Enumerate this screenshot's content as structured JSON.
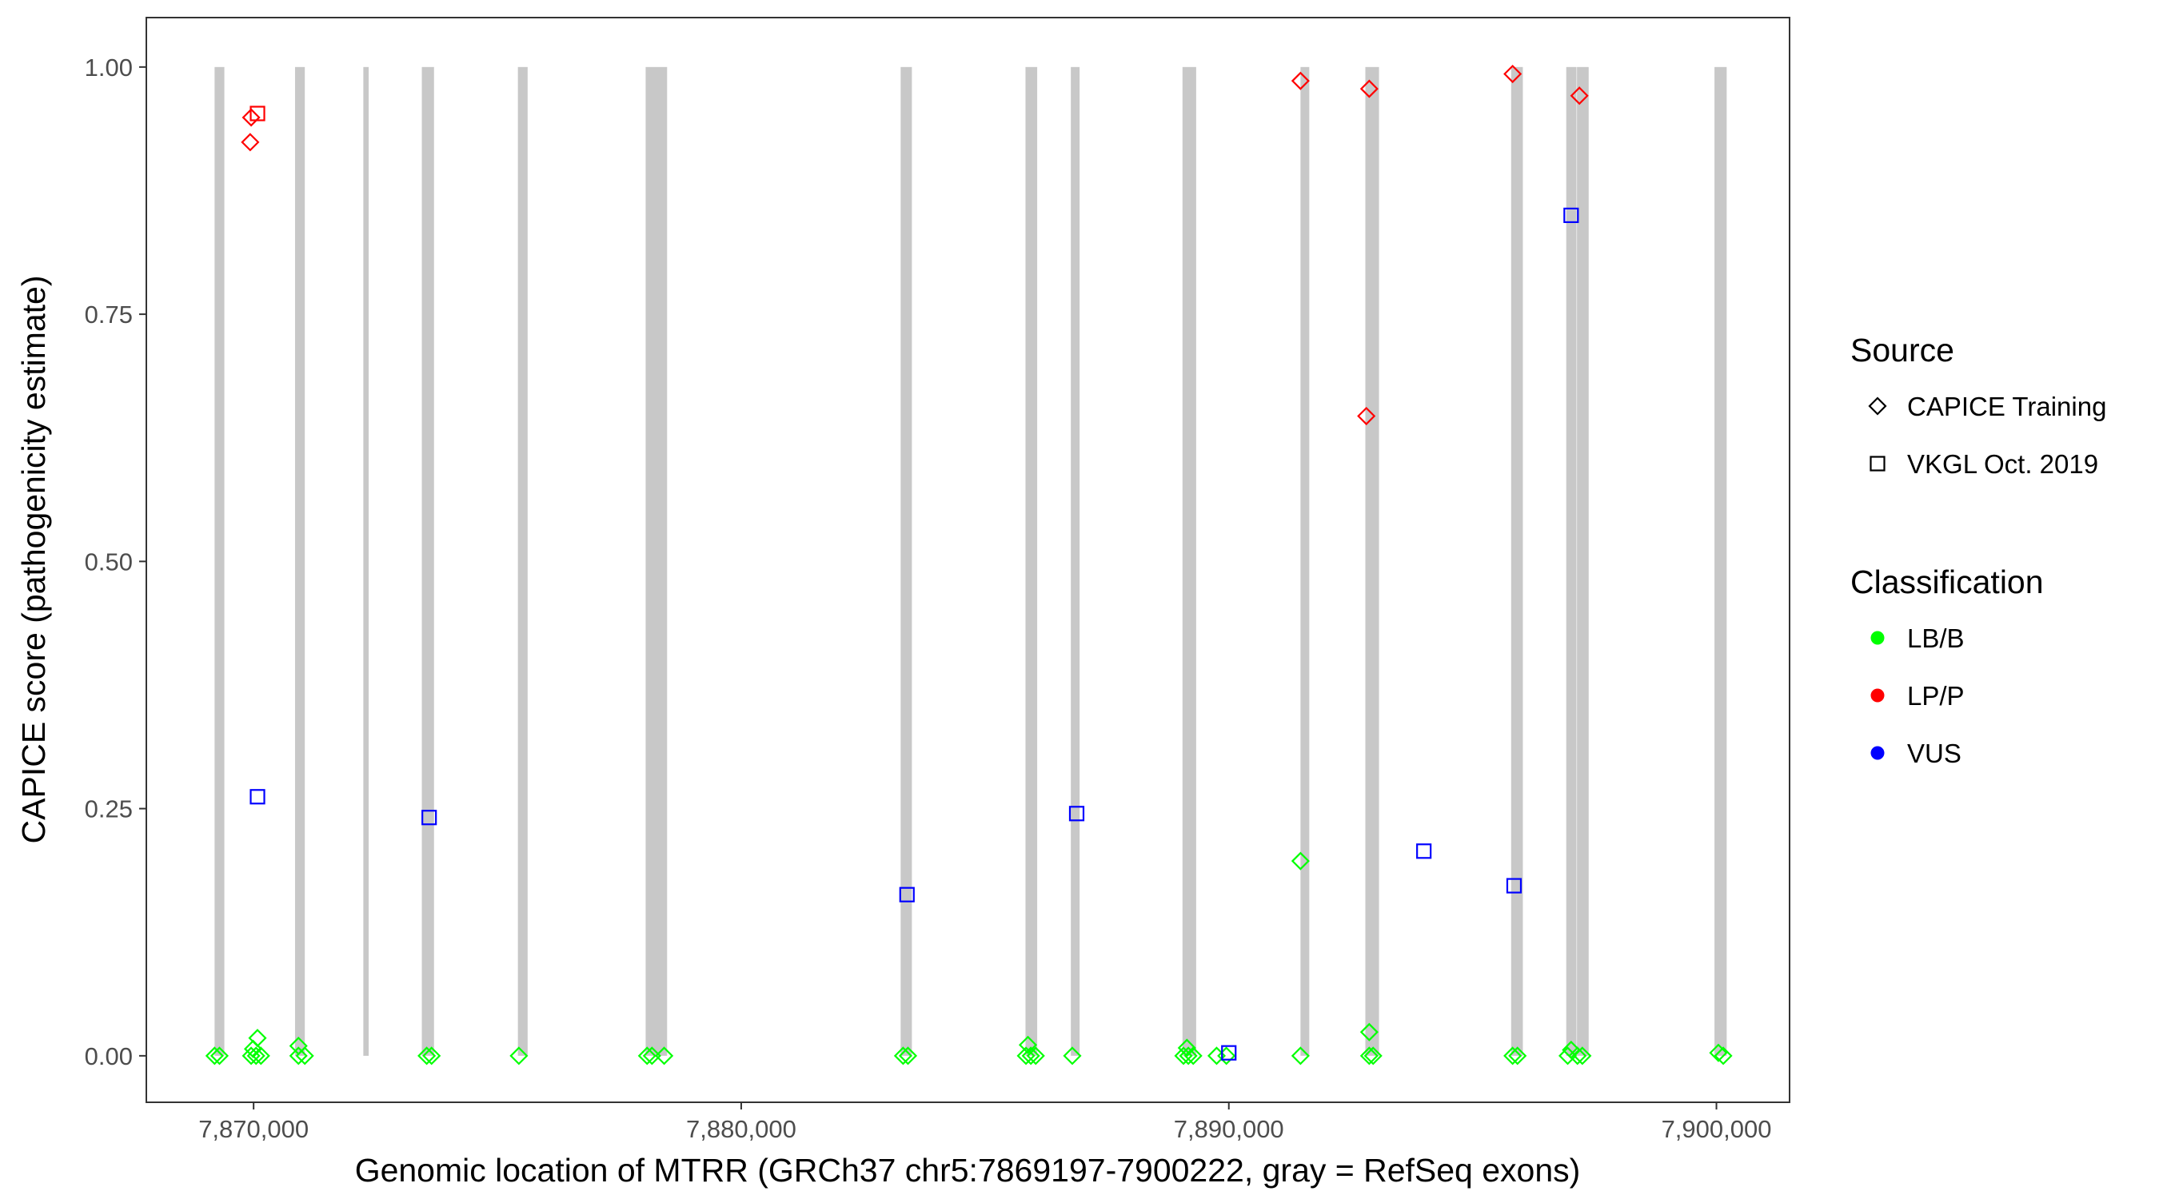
{
  "chart_data": {
    "type": "scatter",
    "xlabel": "Genomic location of MTRR (GRCh37 chr5:7869197-7900222, gray = RefSeq exons)",
    "ylabel": "CAPICE score (pathogenicity estimate)",
    "xlim": [
      7867800,
      7901500
    ],
    "ylim": [
      -0.047,
      1.05
    ],
    "x_ticks": [
      7870000,
      7880000,
      7890000,
      7900000
    ],
    "x_tick_labels": [
      "7,870,000",
      "7,880,000",
      "7,890,000",
      "7,900,000"
    ],
    "y_ticks": [
      0,
      0.25,
      0.5,
      0.75,
      1.0
    ],
    "y_tick_labels": [
      "0.00",
      "0.25",
      "0.50",
      "0.75",
      "1.00"
    ],
    "grid": false,
    "exon_color": "#c8c8c8",
    "exons": [
      [
        7869200,
        7869400
      ],
      [
        7870850,
        7871050
      ],
      [
        7872250,
        7872360
      ],
      [
        7873450,
        7873700
      ],
      [
        7875420,
        7875620
      ],
      [
        7878040,
        7878480
      ],
      [
        7883270,
        7883500
      ],
      [
        7885830,
        7886070
      ],
      [
        7886760,
        7886940
      ],
      [
        7889050,
        7889330
      ],
      [
        7891470,
        7891650
      ],
      [
        7892800,
        7893080
      ],
      [
        7895790,
        7896030
      ],
      [
        7896920,
        7897130
      ],
      [
        7897140,
        7897380
      ],
      [
        7899960,
        7900210
      ]
    ],
    "legend": {
      "source_title": "Source",
      "source_items": [
        {
          "label": "CAPICE Training",
          "shape": "diamond"
        },
        {
          "label": "VKGL Oct. 2019",
          "shape": "square"
        }
      ],
      "class_title": "Classification",
      "class_items": [
        {
          "label": "LB/B",
          "color": "#00ff00"
        },
        {
          "label": "LP/P",
          "color": "#ff0000"
        },
        {
          "label": "VUS",
          "color": "#0000ff"
        }
      ],
      "placement": "right"
    },
    "colors": {
      "LB/B": "#00ff00",
      "LP/P": "#ff0000",
      "VUS": "#0000ff"
    },
    "series": [
      {
        "name": "CAPICE Training",
        "shape": "diamond",
        "points": [
          [
            7869950,
            0.949,
            "LP/P"
          ],
          [
            7869930,
            0.924,
            "LP/P"
          ],
          [
            7891470,
            0.986,
            "LP/P"
          ],
          [
            7892880,
            0.978,
            "LP/P"
          ],
          [
            7895820,
            0.993,
            "LP/P"
          ],
          [
            7897190,
            0.971,
            "LP/P"
          ],
          [
            7892820,
            0.647,
            "LP/P"
          ],
          [
            7891470,
            0.197,
            "LB/B"
          ],
          [
            7892880,
            0.024,
            "LB/B"
          ],
          [
            7870080,
            0.018,
            "LB/B"
          ],
          [
            7869990,
            0.007,
            "LB/B"
          ],
          [
            7870920,
            0.01,
            "LB/B"
          ],
          [
            7885880,
            0.011,
            "LB/B"
          ],
          [
            7889140,
            0.008,
            "LB/B"
          ],
          [
            7897020,
            0.006,
            "LB/B"
          ],
          [
            7869200,
            0.0,
            "LB/B"
          ],
          [
            7869300,
            0.0,
            "LB/B"
          ],
          [
            7869950,
            0.0,
            "LB/B"
          ],
          [
            7870050,
            0.0,
            "LB/B"
          ],
          [
            7870150,
            0.0,
            "LB/B"
          ],
          [
            7870920,
            0.0,
            "LB/B"
          ],
          [
            7871050,
            0.0,
            "LB/B"
          ],
          [
            7873550,
            0.0,
            "LB/B"
          ],
          [
            7873650,
            0.0,
            "LB/B"
          ],
          [
            7875440,
            0.0,
            "LB/B"
          ],
          [
            7878070,
            0.0,
            "LB/B"
          ],
          [
            7878170,
            0.0,
            "LB/B"
          ],
          [
            7878420,
            0.0,
            "LB/B"
          ],
          [
            7883320,
            0.0,
            "LB/B"
          ],
          [
            7883420,
            0.0,
            "LB/B"
          ],
          [
            7885840,
            0.0,
            "LB/B"
          ],
          [
            7885940,
            0.0,
            "LB/B"
          ],
          [
            7886040,
            0.0,
            "LB/B"
          ],
          [
            7886790,
            0.0,
            "LB/B"
          ],
          [
            7889070,
            0.0,
            "LB/B"
          ],
          [
            7889170,
            0.0,
            "LB/B"
          ],
          [
            7889270,
            0.0,
            "LB/B"
          ],
          [
            7889750,
            0.0,
            "LB/B"
          ],
          [
            7889950,
            0.0,
            "LB/B"
          ],
          [
            7891470,
            0.0,
            "LB/B"
          ],
          [
            7892880,
            0.0,
            "LB/B"
          ],
          [
            7892960,
            0.0,
            "LB/B"
          ],
          [
            7895820,
            0.0,
            "LB/B"
          ],
          [
            7895920,
            0.0,
            "LB/B"
          ],
          [
            7896950,
            0.0,
            "LB/B"
          ],
          [
            7897150,
            0.0,
            "LB/B"
          ],
          [
            7897250,
            0.0,
            "LB/B"
          ],
          [
            7900040,
            0.003,
            "LB/B"
          ],
          [
            7900140,
            0.0,
            "LB/B"
          ]
        ]
      },
      {
        "name": "VKGL Oct. 2019",
        "shape": "square",
        "points": [
          [
            7870080,
            0.953,
            "LP/P"
          ],
          [
            7870080,
            0.262,
            "VUS"
          ],
          [
            7873600,
            0.241,
            "VUS"
          ],
          [
            7883400,
            0.163,
            "VUS"
          ],
          [
            7886880,
            0.245,
            "VUS"
          ],
          [
            7890000,
            0.003,
            "VUS"
          ],
          [
            7894000,
            0.207,
            "VUS"
          ],
          [
            7895850,
            0.172,
            "VUS"
          ],
          [
            7897020,
            0.85,
            "VUS"
          ]
        ]
      }
    ]
  }
}
